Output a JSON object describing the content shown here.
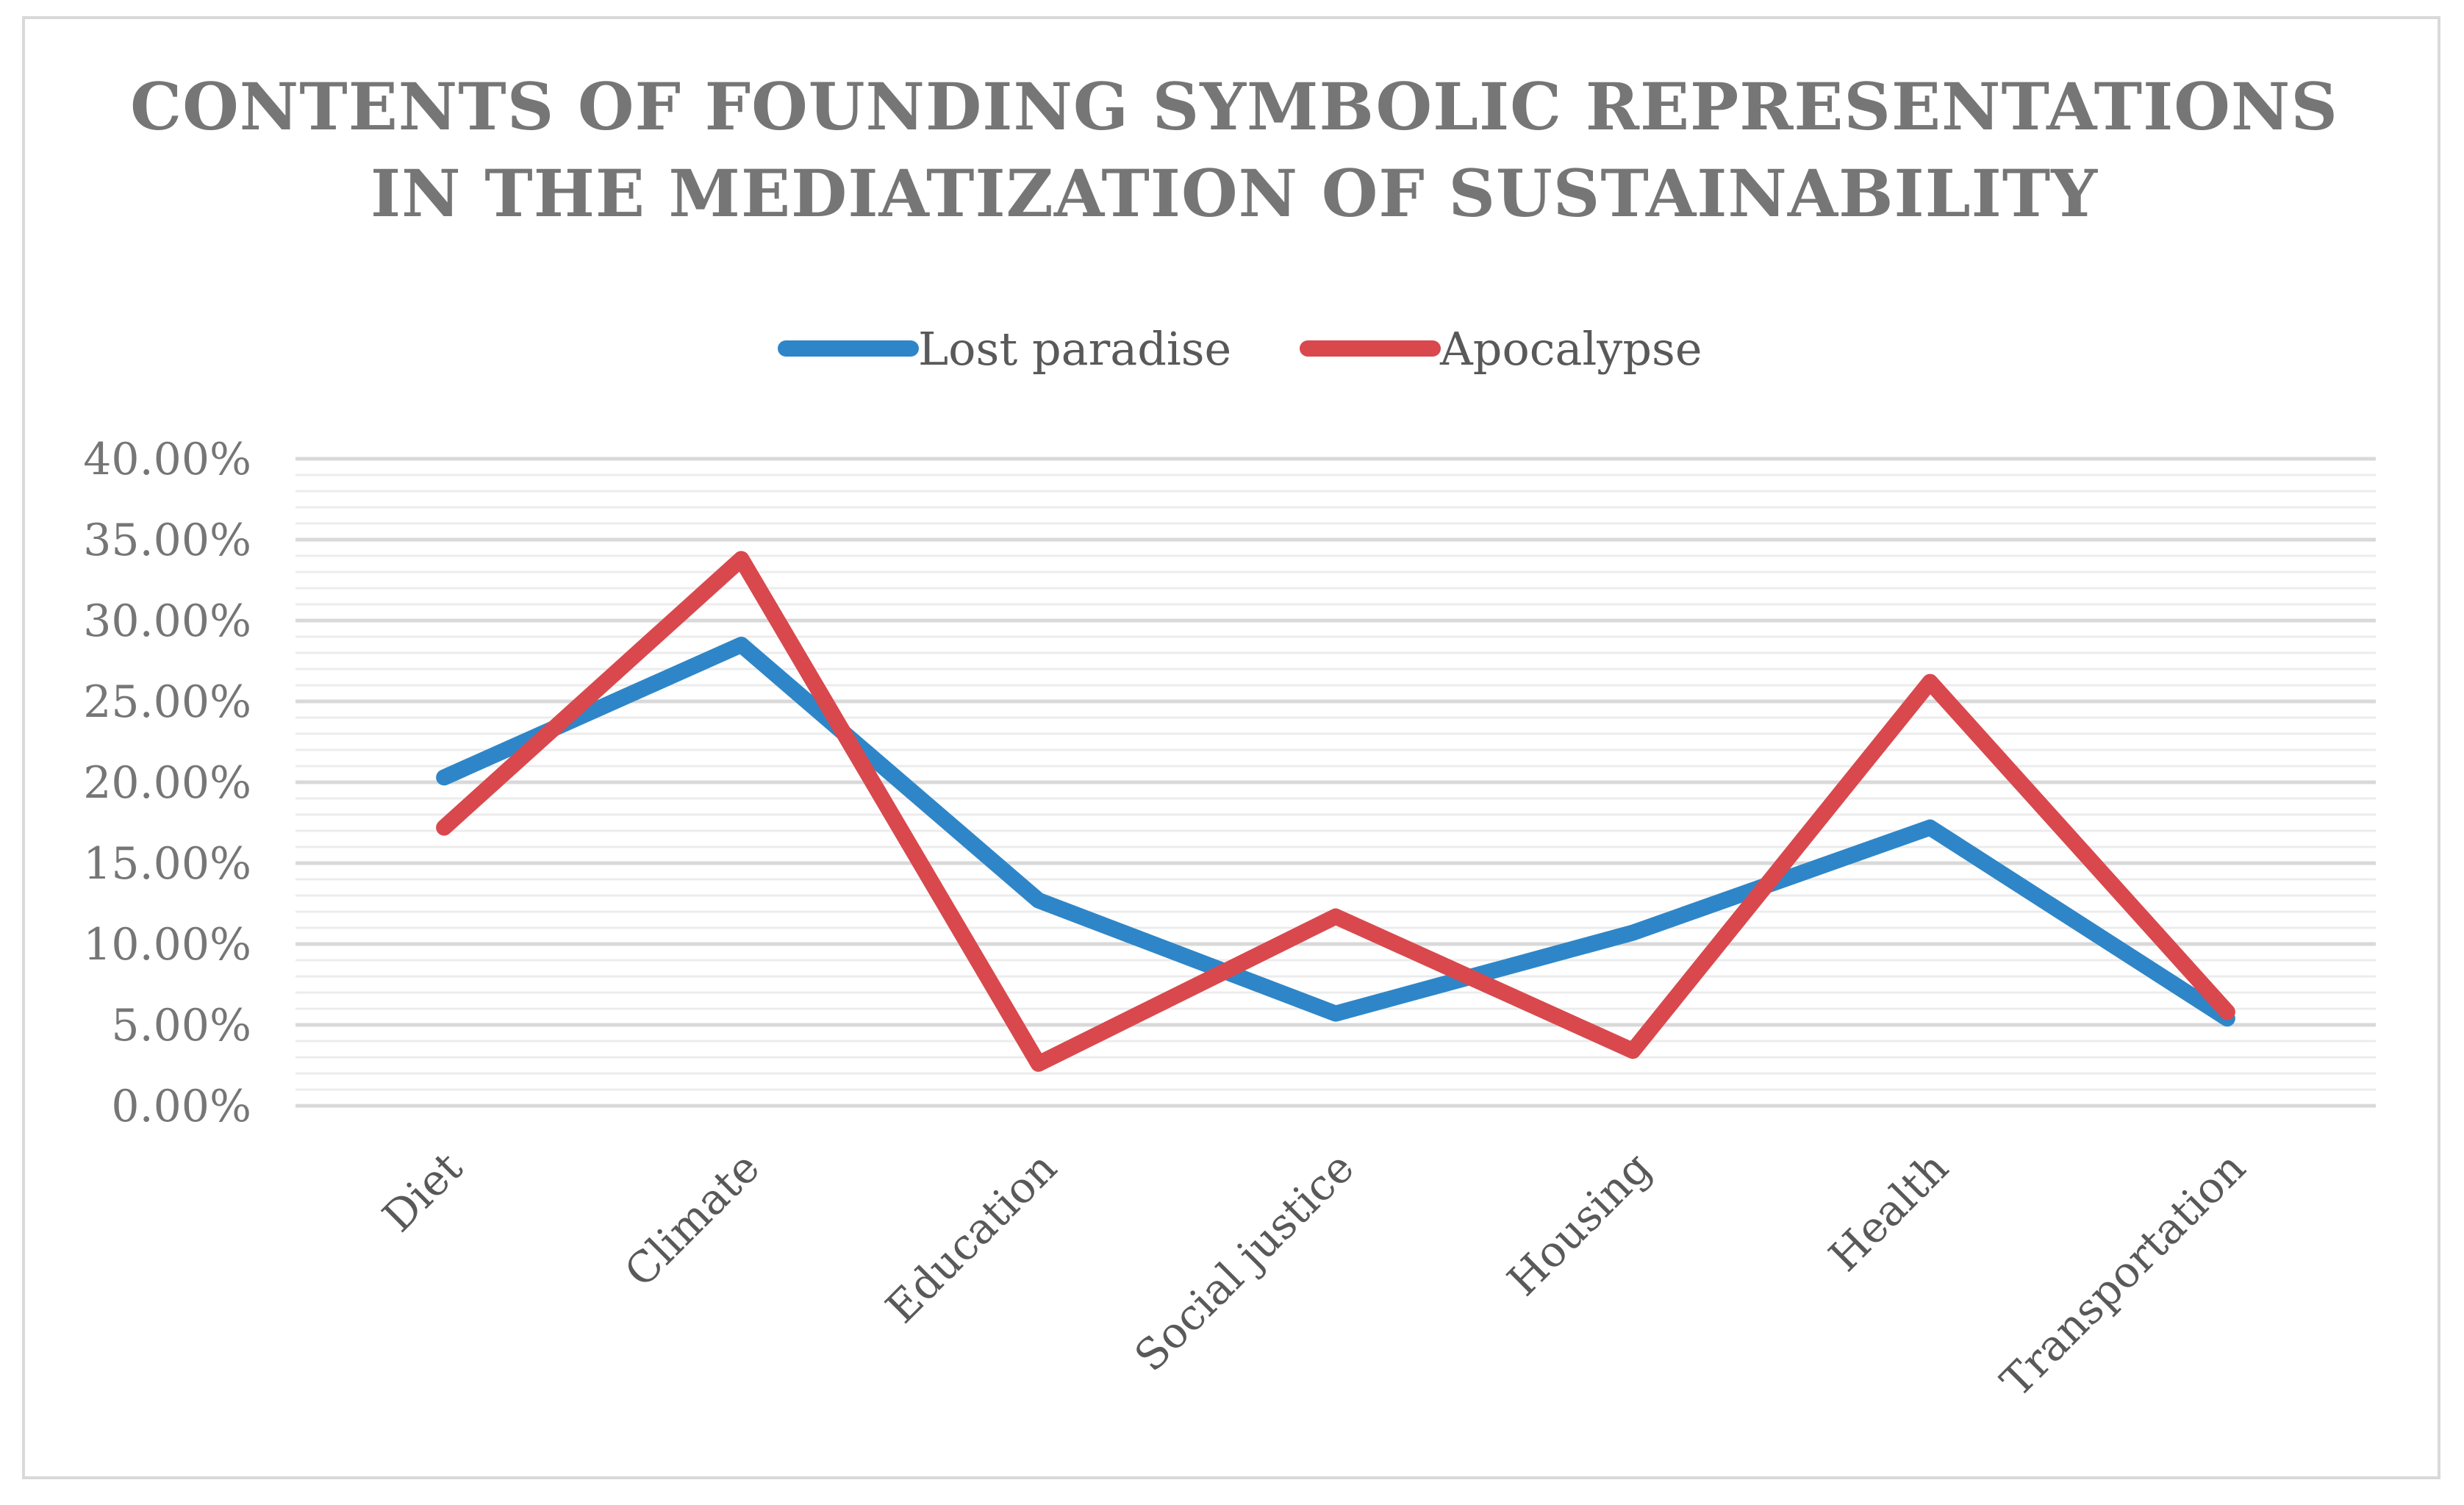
{
  "chart_data": {
    "type": "line",
    "title": "CONTENTS OF FOUNDING SYMBOLIC REPRESENTATIONS IN THE MEDIATIZATION OF SUSTAINABILITY",
    "title_lines": [
      "CONTENTS OF FOUNDING SYMBOLIC REPRESENTATIONS",
      "IN THE MEDIATIZATION OF SUSTAINABILITY"
    ],
    "categories": [
      "Diet",
      "Climate",
      "Education",
      "Social justice",
      "Housing",
      "Health",
      "Transportation"
    ],
    "series": [
      {
        "name": "Lost paradise",
        "color": "#2e86c8",
        "values": [
          20.3,
          28.5,
          12.7,
          5.7,
          10.7,
          17.2,
          5.4
        ]
      },
      {
        "name": "Apocalypse",
        "color": "#d9484d",
        "values": [
          17.2,
          33.8,
          2.6,
          11.7,
          3.4,
          26.2,
          5.8
        ]
      }
    ],
    "ylim": [
      0,
      40
    ],
    "y_ticks": [
      0,
      5,
      10,
      15,
      20,
      25,
      30,
      35,
      40
    ],
    "y_tick_labels": [
      "0.00%",
      "5.00%",
      "10.00%",
      "15.00%",
      "20.00%",
      "25.00%",
      "30.00%",
      "35.00%",
      "40.00%"
    ],
    "minor_step": 1,
    "xlabel": "",
    "ylabel": "",
    "legend_position": "top",
    "grid": true
  }
}
